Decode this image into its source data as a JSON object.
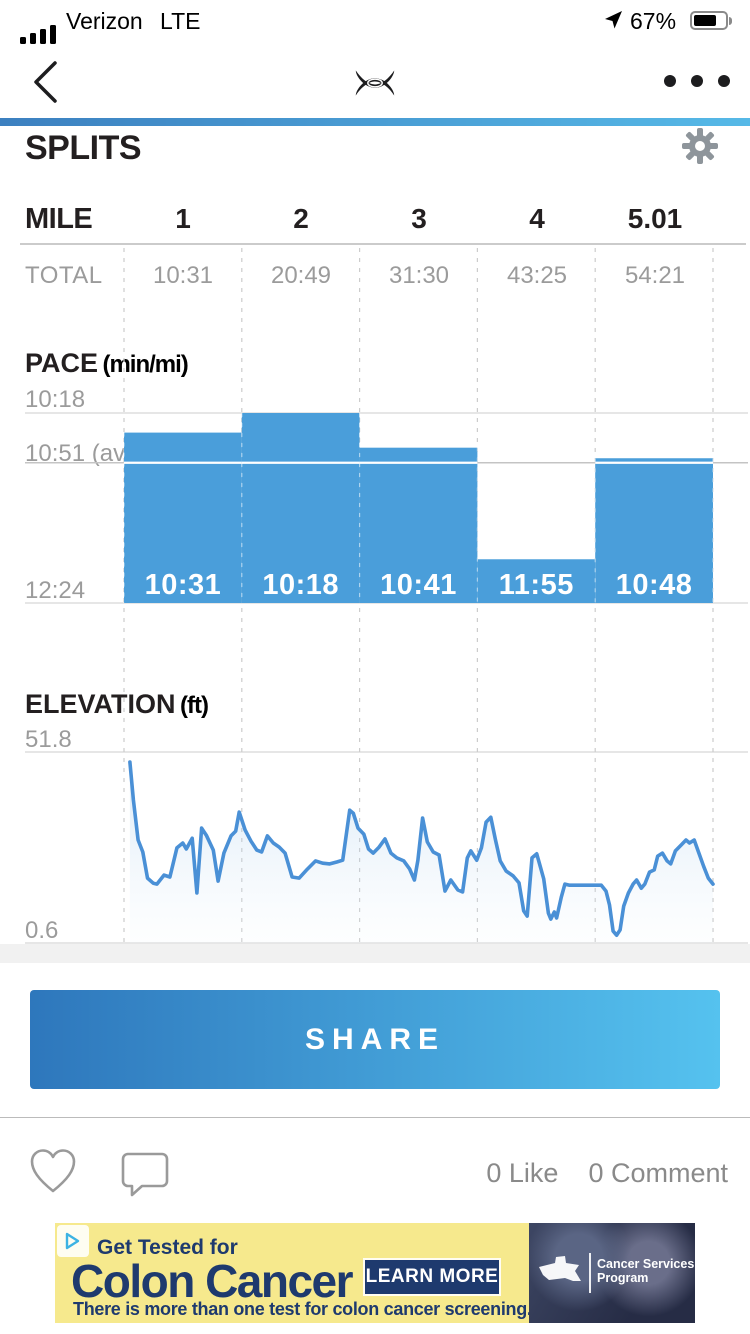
{
  "status_bar": {
    "carrier": "Verizon",
    "network": "LTE",
    "battery_percent": "67%"
  },
  "nav": {
    "menu_dots": "•••"
  },
  "page": {
    "title": "SPLITS"
  },
  "table": {
    "row_header": "MILE",
    "col_labels": [
      "1",
      "2",
      "3",
      "4",
      "5.01"
    ],
    "total_label": "TOTAL",
    "totals": [
      "10:31",
      "20:49",
      "31:30",
      "43:25",
      "54:21"
    ]
  },
  "chart_data": [
    {
      "type": "bar",
      "title": "PACE",
      "unit": "(min/mi)",
      "categories": [
        "1",
        "2",
        "3",
        "4",
        "5.01"
      ],
      "values": [
        "10:31",
        "10:18",
        "10:41",
        "11:55",
        "10:48"
      ],
      "average": "10:51",
      "y_ticks": {
        "top": "10:18",
        "avg": "10:51 (avg)",
        "bottom": "12:24"
      },
      "ylim": [
        "10:18",
        "12:24"
      ],
      "bar_color": "#4a9eda",
      "grid": "horizontal"
    },
    {
      "type": "area",
      "title": "ELEVATION",
      "unit": "(ft)",
      "y_ticks": {
        "top": "51.8",
        "bottom": "0.6"
      },
      "ylim": [
        0.6,
        51.8
      ],
      "x_range_miles": [
        0,
        5.01
      ],
      "line_color": "#4a90d6",
      "points_mile_ft": [
        [
          0.05,
          49.1
        ],
        [
          0.08,
          38.9
        ],
        [
          0.12,
          28.2
        ],
        [
          0.16,
          25.0
        ],
        [
          0.2,
          18.0
        ],
        [
          0.25,
          16.6
        ],
        [
          0.28,
          16.4
        ],
        [
          0.34,
          18.8
        ],
        [
          0.39,
          18.3
        ],
        [
          0.45,
          26.1
        ],
        [
          0.5,
          27.4
        ],
        [
          0.53,
          25.8
        ],
        [
          0.58,
          28.7
        ],
        [
          0.62,
          14.0
        ],
        [
          0.66,
          31.4
        ],
        [
          0.7,
          29.5
        ],
        [
          0.76,
          25.5
        ],
        [
          0.8,
          17.2
        ],
        [
          0.85,
          24.7
        ],
        [
          0.91,
          29.3
        ],
        [
          0.95,
          30.6
        ],
        [
          0.98,
          35.7
        ],
        [
          1.03,
          30.9
        ],
        [
          1.08,
          27.9
        ],
        [
          1.13,
          25.5
        ],
        [
          1.17,
          25.0
        ],
        [
          1.22,
          29.3
        ],
        [
          1.27,
          27.4
        ],
        [
          1.32,
          26.3
        ],
        [
          1.37,
          24.7
        ],
        [
          1.43,
          18.3
        ],
        [
          1.49,
          18.0
        ],
        [
          1.56,
          20.4
        ],
        [
          1.63,
          22.6
        ],
        [
          1.69,
          22.0
        ],
        [
          1.75,
          21.8
        ],
        [
          1.81,
          22.3
        ],
        [
          1.86,
          22.8
        ],
        [
          1.92,
          36.2
        ],
        [
          1.95,
          35.4
        ],
        [
          1.99,
          31.4
        ],
        [
          2.04,
          29.8
        ],
        [
          2.08,
          25.8
        ],
        [
          2.12,
          24.7
        ],
        [
          2.17,
          26.3
        ],
        [
          2.22,
          28.5
        ],
        [
          2.27,
          24.7
        ],
        [
          2.32,
          23.4
        ],
        [
          2.38,
          22.6
        ],
        [
          2.43,
          20.4
        ],
        [
          2.47,
          17.5
        ],
        [
          2.5,
          22.8
        ],
        [
          2.54,
          34.1
        ],
        [
          2.58,
          27.7
        ],
        [
          2.63,
          25.0
        ],
        [
          2.68,
          24.2
        ],
        [
          2.73,
          14.5
        ],
        [
          2.78,
          17.5
        ],
        [
          2.84,
          14.8
        ],
        [
          2.88,
          14.3
        ],
        [
          2.92,
          23.4
        ],
        [
          2.95,
          25.3
        ],
        [
          3.0,
          22.8
        ],
        [
          3.04,
          26.1
        ],
        [
          3.08,
          33.0
        ],
        [
          3.12,
          34.3
        ],
        [
          3.16,
          28.2
        ],
        [
          3.2,
          22.6
        ],
        [
          3.25,
          19.9
        ],
        [
          3.31,
          18.6
        ],
        [
          3.36,
          16.7
        ],
        [
          3.4,
          9.2
        ],
        [
          3.43,
          7.8
        ],
        [
          3.47,
          23.4
        ],
        [
          3.51,
          24.5
        ],
        [
          3.54,
          21.2
        ],
        [
          3.57,
          17.8
        ],
        [
          3.61,
          8.6
        ],
        [
          3.63,
          7.0
        ],
        [
          3.66,
          8.9
        ],
        [
          3.68,
          7.3
        ],
        [
          3.72,
          12.9
        ],
        [
          3.75,
          16.4
        ],
        [
          3.79,
          16.1
        ],
        [
          4.06,
          16.1
        ],
        [
          4.1,
          14.5
        ],
        [
          4.13,
          10.8
        ],
        [
          4.16,
          3.8
        ],
        [
          4.19,
          2.7
        ],
        [
          4.22,
          4.1
        ],
        [
          4.25,
          10.5
        ],
        [
          4.29,
          14.0
        ],
        [
          4.33,
          16.4
        ],
        [
          4.36,
          17.5
        ],
        [
          4.4,
          15.3
        ],
        [
          4.43,
          16.4
        ],
        [
          4.47,
          19.6
        ],
        [
          4.51,
          20.2
        ],
        [
          4.54,
          23.9
        ],
        [
          4.58,
          24.7
        ],
        [
          4.62,
          22.6
        ],
        [
          4.65,
          21.8
        ],
        [
          4.69,
          25.3
        ],
        [
          4.74,
          26.9
        ],
        [
          4.78,
          28.2
        ],
        [
          4.81,
          27.4
        ],
        [
          4.85,
          28.2
        ],
        [
          4.89,
          24.7
        ],
        [
          4.93,
          21.2
        ],
        [
          4.97,
          18.0
        ],
        [
          5.01,
          16.4
        ]
      ]
    }
  ],
  "share": {
    "label": "SHARE"
  },
  "social": {
    "likes": "0 Like",
    "comments": "0 Comment"
  },
  "ad": {
    "kicker": "Get Tested for",
    "headline": "Colon Cancer",
    "cta": "LEARN MORE",
    "tagline": "There is more than one test for colon cancer screening.",
    "sponsor_line1": "Cancer Services",
    "sponsor_line2": "Program"
  },
  "colors": {
    "accent_bar": "#4a9eda",
    "elevation_line": "#4a90d6",
    "nav_rule_gradient": [
      "#3c80c0",
      "#56b9e7"
    ],
    "share_gradient": [
      "#2e77bc",
      "#55c2ef"
    ],
    "ad_bg": "#f6e98d",
    "ad_navy": "#1e3a6e"
  }
}
